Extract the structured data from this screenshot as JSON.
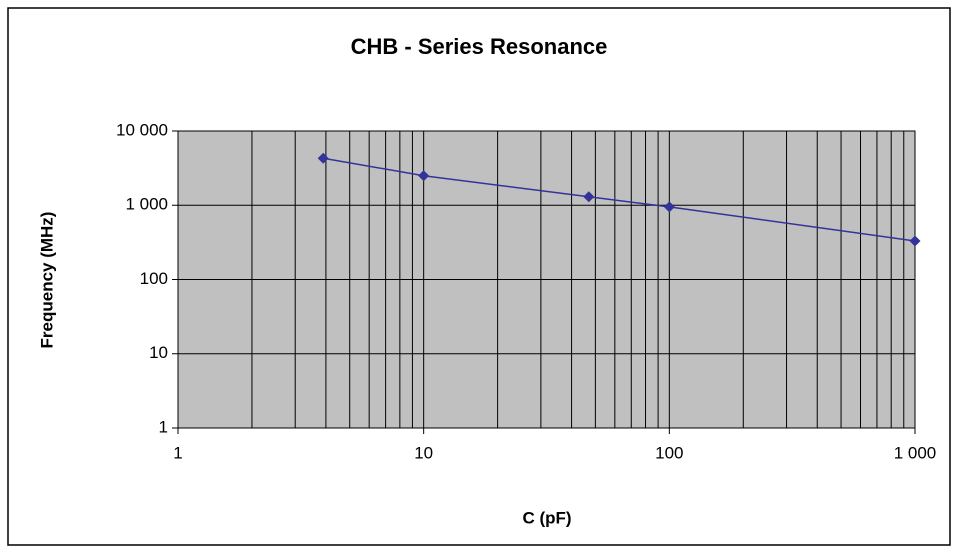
{
  "chart_data": {
    "type": "line",
    "title": "CHB - Series Resonance",
    "xlabel": "C (pF)",
    "ylabel": "Frequency (MHz)",
    "x": [
      3.9,
      10,
      47,
      100,
      1000
    ],
    "series": [
      {
        "name": "CHB",
        "color": "#333399",
        "values": [
          4300,
          2500,
          1300,
          950,
          330
        ]
      }
    ],
    "xlim": [
      1,
      1000
    ],
    "ylim": [
      1,
      10000
    ],
    "xticks": [
      1,
      10,
      100,
      {
        "value": 1000,
        "label": "1 000"
      }
    ],
    "yticks": [
      1,
      10,
      100,
      {
        "value": 1000,
        "label": "1 000"
      },
      {
        "value": 10000,
        "label": "10 000"
      }
    ],
    "xscale": "log",
    "yscale": "log",
    "grid": true,
    "minor_xgrid": true,
    "legend": false
  }
}
